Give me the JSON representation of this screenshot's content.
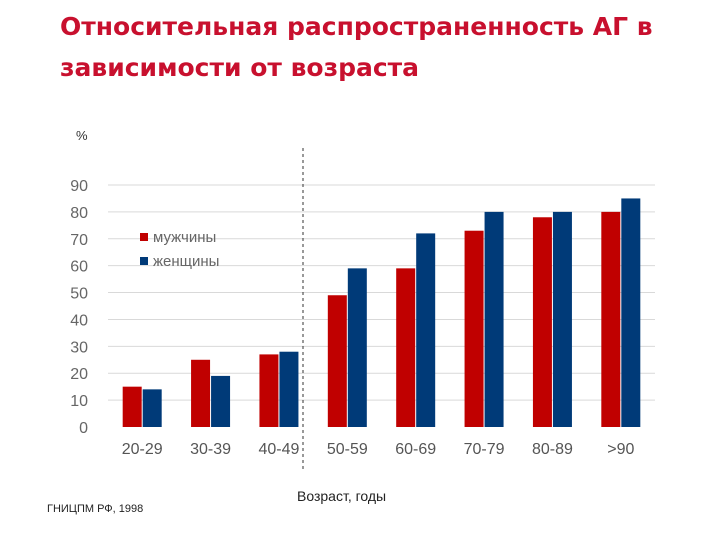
{
  "chart_data": {
    "type": "bar",
    "title": "Относительная распространенность АГ в зависимости от возраста",
    "ylabel": "%",
    "xlabel": "Возраст, годы",
    "source": "ГНИЦПМ РФ, 1998",
    "categories": [
      "20-29",
      "30-39",
      "40-49",
      "50-59",
      "60-69",
      "70-79",
      "80-89",
      ">90"
    ],
    "yticks": [
      0,
      10,
      20,
      30,
      40,
      50,
      60,
      70,
      80,
      90
    ],
    "ylim": [
      0,
      90
    ],
    "grid": true,
    "legend_position": "top-left",
    "series": [
      {
        "name": "мужчины",
        "color": "#c00000",
        "values": [
          15,
          25,
          27,
          49,
          59,
          73,
          78,
          80
        ]
      },
      {
        "name": "женщины",
        "color": "#003a78",
        "values": [
          14,
          19,
          28,
          59,
          72,
          80,
          80,
          85
        ]
      }
    ]
  }
}
